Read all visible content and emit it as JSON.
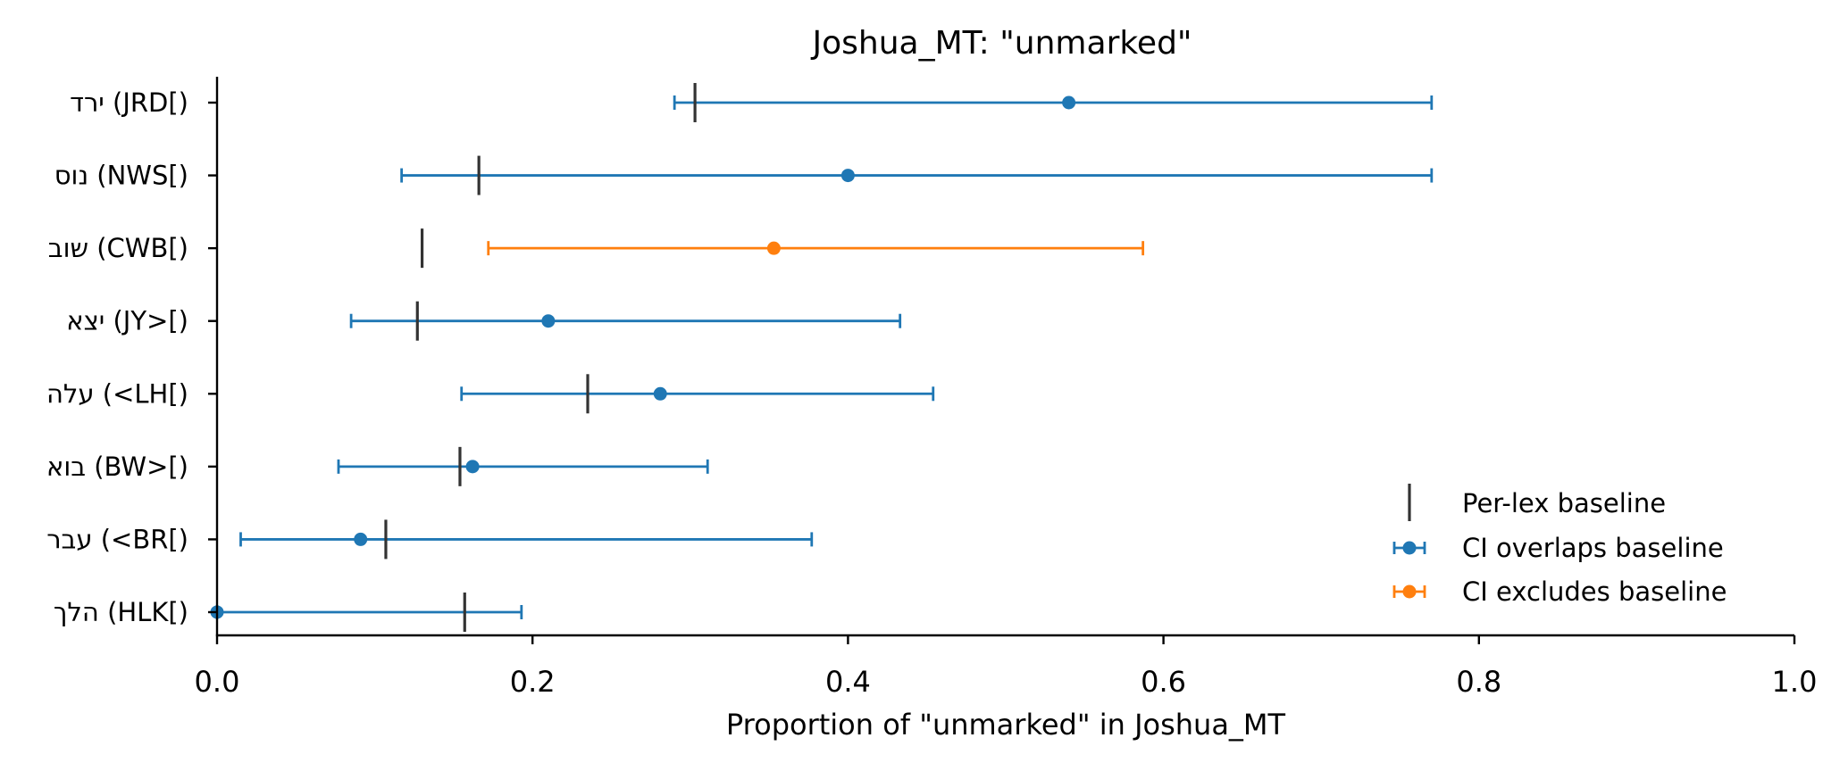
{
  "chart_data": {
    "type": "errorbar",
    "title": "Joshua_MT: \"unmarked\"",
    "xlabel": "Proportion of \"unmarked\" in Joshua_MT",
    "ylabel": "",
    "xlim": [
      0.0,
      1.0
    ],
    "xticks": [
      "0.0",
      "0.2",
      "0.4",
      "0.6",
      "0.8",
      "1.0"
    ],
    "grid": false,
    "legend_position": "lower-right",
    "colors": {
      "overlaps": "#1f77b4",
      "excludes": "#ff7f0e",
      "baseline": "#333333"
    },
    "legend": [
      {
        "key": "baseline",
        "label": "Per-lex baseline"
      },
      {
        "key": "overlaps",
        "label": "CI overlaps baseline"
      },
      {
        "key": "excludes",
        "label": "CI excludes baseline"
      }
    ],
    "rows": [
      {
        "label": "ירד (JRD[)",
        "value": 0.54,
        "ci_low": 0.29,
        "ci_high": 0.77,
        "baseline": 0.303,
        "status": "overlaps"
      },
      {
        "label": "נוס (NWS[)",
        "value": 0.4,
        "ci_low": 0.117,
        "ci_high": 0.77,
        "baseline": 0.166,
        "status": "overlaps"
      },
      {
        "label": "שוב (CWB[)",
        "value": 0.353,
        "ci_low": 0.172,
        "ci_high": 0.587,
        "baseline": 0.13,
        "status": "excludes"
      },
      {
        "label": "יצא (JY>[)",
        "value": 0.21,
        "ci_low": 0.085,
        "ci_high": 0.433,
        "baseline": 0.127,
        "status": "overlaps"
      },
      {
        "label": "עלה (<LH[)",
        "value": 0.281,
        "ci_low": 0.155,
        "ci_high": 0.454,
        "baseline": 0.235,
        "status": "overlaps"
      },
      {
        "label": "בוא (BW>[)",
        "value": 0.162,
        "ci_low": 0.077,
        "ci_high": 0.311,
        "baseline": 0.154,
        "status": "overlaps"
      },
      {
        "label": "עבר (<BR[)",
        "value": 0.091,
        "ci_low": 0.015,
        "ci_high": 0.377,
        "baseline": 0.107,
        "status": "overlaps"
      },
      {
        "label": "הלך (HLK[)",
        "value": 0.0,
        "ci_low": 0.0,
        "ci_high": 0.193,
        "baseline": 0.157,
        "status": "overlaps"
      }
    ]
  }
}
